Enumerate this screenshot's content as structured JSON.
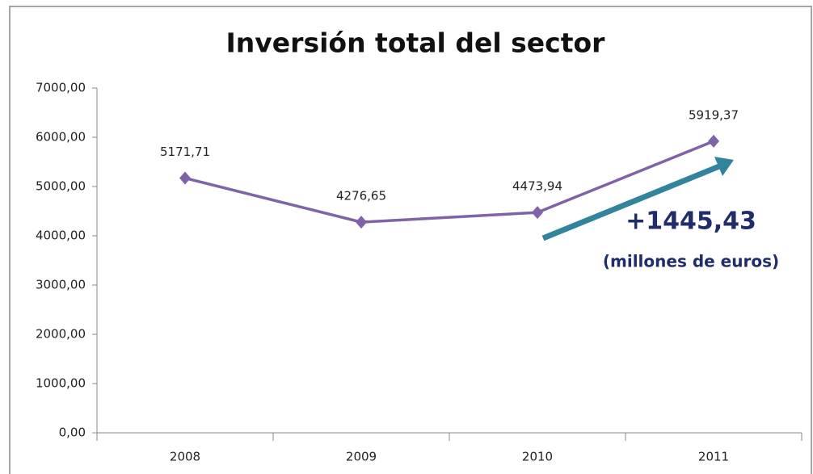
{
  "chart_data": {
    "type": "line",
    "title": "Inversión total del sector",
    "categories": [
      "2008",
      "2009",
      "2010",
      "2011"
    ],
    "series": [
      {
        "name": "Inversión total del sector",
        "color": "#7f62a8",
        "values": [
          5171.71,
          4276.65,
          4473.94,
          5919.37
        ],
        "value_labels": [
          "5171,71",
          "4276,65",
          "4473,94",
          "5919,37"
        ]
      }
    ],
    "ylim": [
      0,
      7000
    ],
    "yticks": [
      {
        "value": 0,
        "label": "0,00"
      },
      {
        "value": 1000,
        "label": "1000,00"
      },
      {
        "value": 2000,
        "label": "2000,00"
      },
      {
        "value": 3000,
        "label": "3000,00"
      },
      {
        "value": 4000,
        "label": "4000,00"
      },
      {
        "value": 5000,
        "label": "5000,00"
      },
      {
        "value": 6000,
        "label": "6000,00"
      },
      {
        "value": 7000,
        "label": "7000,00"
      }
    ],
    "grid": false,
    "annotations": [
      "+1445,43",
      "(millones de euros)"
    ]
  }
}
